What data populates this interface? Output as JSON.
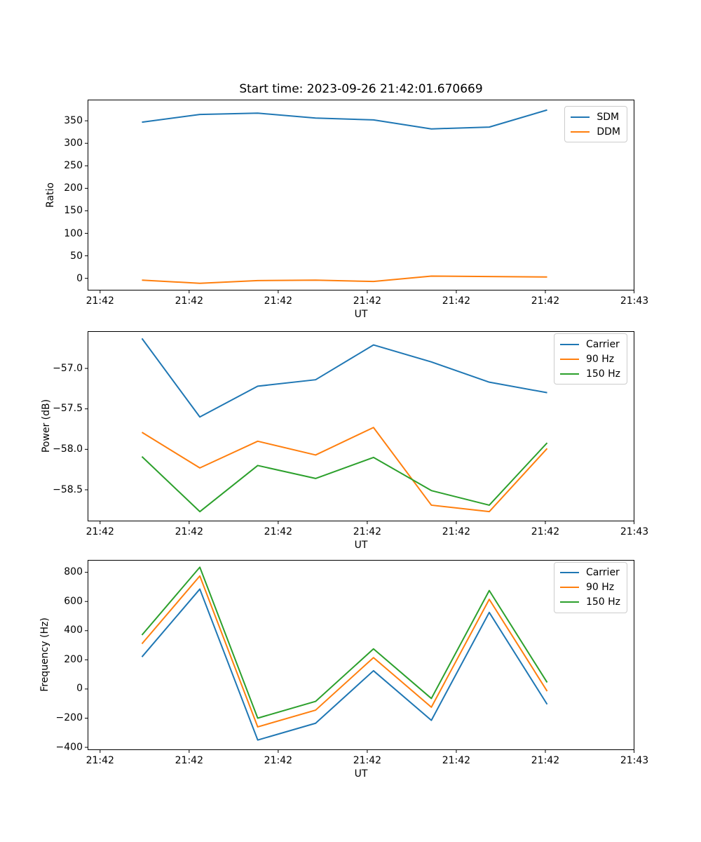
{
  "figure": {
    "title": "Start time: 2023-09-26 21:42:01.670669",
    "background": "#ffffff",
    "text_color": "#000000",
    "spine_color": "#000000",
    "legend_border_color": "#cccccc"
  },
  "palette": {
    "blue": "#1f77b4",
    "orange": "#ff7f0e",
    "green": "#2ca02c"
  },
  "chart_data": [
    {
      "type": "line",
      "title": "Start time: 2023-09-26 21:42:01.670669",
      "xlabel": "UT",
      "ylabel": "Ratio",
      "grid": false,
      "legend_position": "upper right",
      "x_range": [
        -1.4,
        60
      ],
      "y_range": [
        -27,
        397
      ],
      "x_ticks": {
        "values": [
          0,
          10,
          20,
          30,
          40,
          50,
          60
        ],
        "labels": [
          "21:42",
          "21:42",
          "21:42",
          "21:42",
          "21:42",
          "21:42",
          "21:43"
        ]
      },
      "y_ticks": {
        "values": [
          0,
          50,
          100,
          150,
          200,
          250,
          300,
          350
        ],
        "labels": [
          "0",
          "50",
          "100",
          "150",
          "200",
          "250",
          "300",
          "350"
        ]
      },
      "x": [
        4.7,
        11.2,
        17.7,
        24.2,
        30.7,
        37.2,
        43.7,
        50.2
      ],
      "series": [
        {
          "name": "SDM",
          "color": "blue",
          "values": [
            347,
            364,
            367,
            356,
            352,
            332,
            336,
            374
          ]
        },
        {
          "name": "DDM",
          "color": "orange",
          "values": [
            -4,
            -11,
            -5,
            -4,
            -7,
            5,
            4,
            3
          ]
        }
      ]
    },
    {
      "type": "line",
      "title": "",
      "xlabel": "UT",
      "ylabel": "Power (dB)",
      "grid": false,
      "legend_position": "upper right",
      "x_range": [
        -1.4,
        60
      ],
      "y_range": [
        -58.89,
        -56.54
      ],
      "x_ticks": {
        "values": [
          0,
          10,
          20,
          30,
          40,
          50,
          60
        ],
        "labels": [
          "21:42",
          "21:42",
          "21:42",
          "21:42",
          "21:42",
          "21:42",
          "21:43"
        ]
      },
      "y_ticks": {
        "values": [
          -57.0,
          -57.5,
          -58.0,
          -58.5
        ],
        "labels": [
          "−57.0",
          "−57.5",
          "−58.0",
          "−58.5"
        ]
      },
      "x": [
        4.7,
        11.2,
        17.7,
        24.2,
        30.7,
        37.2,
        43.7,
        50.2
      ],
      "series": [
        {
          "name": "Carrier",
          "color": "blue",
          "values": [
            -56.63,
            -57.6,
            -57.22,
            -57.14,
            -56.71,
            -56.92,
            -57.17,
            -57.3
          ]
        },
        {
          "name": "90 Hz",
          "color": "orange",
          "values": [
            -57.79,
            -58.23,
            -57.9,
            -58.07,
            -57.73,
            -58.69,
            -58.77,
            -57.99
          ]
        },
        {
          "name": "150 Hz",
          "color": "green",
          "values": [
            -58.09,
            -58.77,
            -58.2,
            -58.36,
            -58.1,
            -58.51,
            -58.69,
            -57.92
          ]
        }
      ]
    },
    {
      "type": "line",
      "title": "",
      "xlabel": "UT",
      "ylabel": "Frequency (Hz)",
      "grid": false,
      "legend_position": "upper right",
      "x_range": [
        -1.4,
        60
      ],
      "y_range": [
        -419,
        885
      ],
      "x_ticks": {
        "values": [
          0,
          10,
          20,
          30,
          40,
          50,
          60
        ],
        "labels": [
          "21:42",
          "21:42",
          "21:42",
          "21:42",
          "21:42",
          "21:42",
          "21:43"
        ]
      },
      "y_ticks": {
        "values": [
          -400,
          -200,
          0,
          200,
          400,
          600,
          800
        ],
        "labels": [
          "−400",
          "−200",
          "0",
          "200",
          "400",
          "600",
          "800"
        ]
      },
      "x": [
        4.7,
        11.2,
        17.7,
        24.2,
        30.7,
        37.2,
        43.7,
        50.2
      ],
      "series": [
        {
          "name": "Carrier",
          "color": "blue",
          "values": [
            220,
            685,
            -350,
            -235,
            125,
            -215,
            525,
            -105
          ]
        },
        {
          "name": "90 Hz",
          "color": "orange",
          "values": [
            310,
            775,
            -260,
            -145,
            215,
            -125,
            615,
            -15
          ]
        },
        {
          "name": "150 Hz",
          "color": "green",
          "values": [
            370,
            835,
            -200,
            -85,
            275,
            -65,
            675,
            45
          ]
        }
      ]
    }
  ]
}
